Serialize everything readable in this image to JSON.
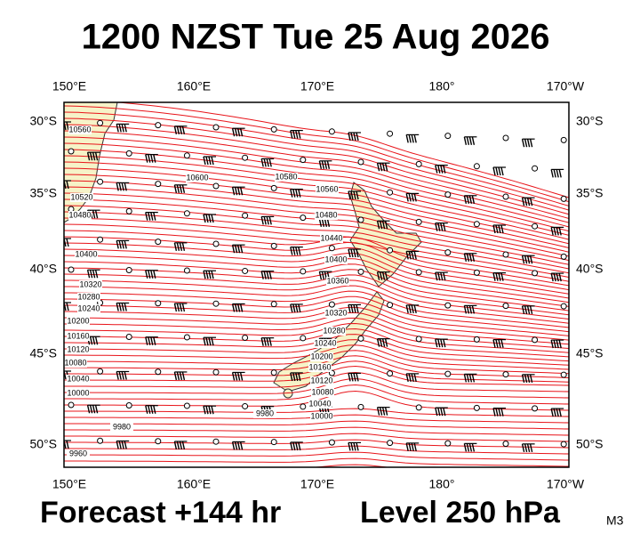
{
  "header": {
    "title": "1200 NZST Tue 25 Aug 2026"
  },
  "map": {
    "lon_labels": [
      "150°E",
      "160°E",
      "170°E",
      "180°",
      "170°W"
    ],
    "lat_labels": [
      "30°S",
      "35°S",
      "40°S",
      "45°S",
      "50°S"
    ],
    "contour_labels": [
      "10560",
      "10520",
      "10480",
      "10600",
      "10580",
      "10560",
      "10480",
      "10440",
      "10400",
      "10400",
      "10360",
      "10320",
      "10280",
      "10240",
      "10200",
      "10160",
      "10120",
      "10080",
      "10040",
      "10000",
      "10280",
      "10240",
      "10200",
      "10160",
      "10120",
      "10080",
      "10040",
      "10000",
      "9980",
      "9960",
      "9980",
      "10320"
    ]
  },
  "footer": {
    "forecast": "Forecast +144 hr",
    "level": "Level 250 hPa",
    "code": "M3"
  }
}
